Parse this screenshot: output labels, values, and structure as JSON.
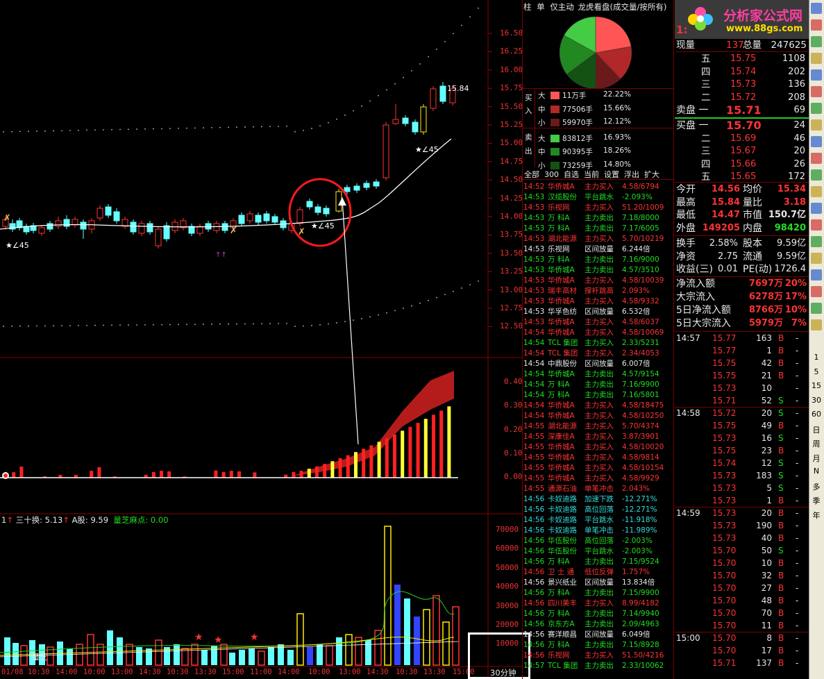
{
  "main_chart": {
    "price_axis": [
      "16.50",
      "16.25",
      "16.00",
      "15.75",
      "15.50",
      "15.25",
      "15.00",
      "14.75",
      "14.50",
      "14.25",
      "14.00",
      "13.75",
      "13.50",
      "13.25",
      "13.00",
      "12.75",
      "12.50"
    ],
    "annotations": [
      "15.84",
      "★∠45",
      "★∠45",
      "★∠45"
    ]
  },
  "indicator_axis": [
    "0.40",
    "0.30",
    "0.20",
    "0.10",
    "0.00"
  ],
  "volume_panel": {
    "header_prefix": "1",
    "label1": "三十换: 5.13",
    "label2": "A股: 9.59",
    "label3": "量芝麻点: 0.00",
    "axis": [
      "70000",
      "60000",
      "50000",
      "40000",
      "30000",
      "20000",
      "10000"
    ],
    "bottom_text": "量芝"
  },
  "time_axis": [
    "01/08 10:30",
    "14:00",
    "10:00",
    "13:00",
    "14:30",
    "10:30",
    "13:30",
    "15:00",
    "11:00",
    "14:00",
    "10:00",
    "13:00",
    "14:30",
    "10:30",
    "13:30",
    "15:00"
  ],
  "period_label": "30分钟",
  "middle_panel": {
    "tabs": [
      "柱",
      "单",
      "仅主动",
      "龙虎看盘(成交量/按所有)"
    ],
    "flow": {
      "buy_label": [
        "买",
        "入"
      ],
      "sell_label": [
        "卖",
        "出"
      ],
      "rows": [
        {
          "size": "大",
          "amount": "11万手",
          "pct": "22.22%",
          "color": "#ff5555"
        },
        {
          "size": "中",
          "amount": "77506手",
          "pct": "15.66%",
          "color": "#b02828"
        },
        {
          "size": "小",
          "amount": "59970手",
          "pct": "12.12%",
          "color": "#6a1a1a"
        },
        {
          "size": "大",
          "amount": "83812手",
          "pct": "16.93%",
          "color": "#44cc44"
        },
        {
          "size": "中",
          "amount": "90395手",
          "pct": "18.26%",
          "color": "#228822"
        },
        {
          "size": "小",
          "amount": "73259手",
          "pct": "14.80%",
          "color": "#145214"
        }
      ]
    },
    "filter_bar": "全部  300  自选  当前  设置  浮出  扩大",
    "list": [
      [
        "14:52",
        "华侨城A",
        "主力买入",
        "4.58/6794",
        "r"
      ],
      [
        "14:53",
        "汉缆股份",
        "平台跳水",
        "-2.093%",
        "g"
      ],
      [
        "14:53",
        "乐视网",
        "主力买入",
        "51.20/1009",
        "r"
      ],
      [
        "14:53",
        "万  科A",
        "主力卖出",
        "7.18/8000",
        "g"
      ],
      [
        "14:53",
        "万  科A",
        "主力卖出",
        "7.17/6005",
        "g"
      ],
      [
        "14:53",
        "湖北能源",
        "主力买入",
        "5.70/10219",
        "r"
      ],
      [
        "14:53",
        "乐视网",
        "区间放量",
        "6.244倍",
        "w"
      ],
      [
        "14:53",
        "万  科A",
        "主力卖出",
        "7.16/9000",
        "g"
      ],
      [
        "14:53",
        "华侨城A",
        "主力卖出",
        "4.57/3510",
        "g"
      ],
      [
        "14:53",
        "华侨城A",
        "主力买入",
        "4.58/10039",
        "r"
      ],
      [
        "14:53",
        "瑞丰高材",
        "撑杆跳高",
        "2.093%",
        "r"
      ],
      [
        "14:53",
        "华侨城A",
        "主力买入",
        "4.58/9332",
        "r"
      ],
      [
        "14:53",
        "华孚色纺",
        "区间放量",
        "6.532倍",
        "w"
      ],
      [
        "14:53",
        "华侨城A",
        "主力买入",
        "4.58/6037",
        "r"
      ],
      [
        "14:54",
        "华侨城A",
        "主力买入",
        "4.58/10069",
        "r"
      ],
      [
        "14:54",
        "TCL 集团",
        "主力买入",
        "2.33/5231",
        "g"
      ],
      [
        "14:54",
        "TCL 集团",
        "主力买入",
        "2.34/4053",
        "r"
      ],
      [
        "14:54",
        "中鼎股份",
        "区间放量",
        "6.007倍",
        "w"
      ],
      [
        "14:54",
        "华侨城A",
        "主力卖出",
        "4.57/9154",
        "g"
      ],
      [
        "14:54",
        "万  科A",
        "主力卖出",
        "7.16/9900",
        "g"
      ],
      [
        "14:54",
        "万  科A",
        "主力卖出",
        "7.16/5801",
        "g"
      ],
      [
        "14:54",
        "华侨城A",
        "主力买入",
        "4.58/18475",
        "r"
      ],
      [
        "14:54",
        "华侨城A",
        "主力买入",
        "4.58/10250",
        "r"
      ],
      [
        "14:55",
        "湖北能源",
        "主力买入",
        "5.70/4374",
        "r"
      ],
      [
        "14:55",
        "深康佳A",
        "主力买入",
        "3.87/3901",
        "r"
      ],
      [
        "14:55",
        "华侨城A",
        "主力买入",
        "4.58/10020",
        "r"
      ],
      [
        "14:55",
        "华侨城A",
        "主力买入",
        "4.58/9814",
        "r"
      ],
      [
        "14:55",
        "华侨城A",
        "主力买入",
        "4.58/10154",
        "r"
      ],
      [
        "14:55",
        "华侨城A",
        "主力买入",
        "4.58/9929",
        "r"
      ],
      [
        "14:55",
        "通源石油",
        "单笔冲击",
        "2.043%",
        "r"
      ],
      [
        "14:56",
        "卡奴迪路",
        "加速下跌",
        "-12.271%",
        "c"
      ],
      [
        "14:56",
        "卡奴迪路",
        "高位回落",
        "-12.271%",
        "c"
      ],
      [
        "14:56",
        "卡奴迪路",
        "平台跳水",
        "-11.918%",
        "c"
      ],
      [
        "14:56",
        "卡奴迪路",
        "单笔冲击",
        "-11.989%",
        "c"
      ],
      [
        "14:56",
        "华伍股份",
        "高位回落",
        "-2.003%",
        "g"
      ],
      [
        "14:56",
        "华伍股份",
        "平台跳水",
        "-2.003%",
        "g"
      ],
      [
        "14:56",
        "万  科A",
        "主力卖出",
        "7.15/9524",
        "g"
      ],
      [
        "14:56",
        "卫 士 通",
        "低位反弹",
        "1.757%",
        "r"
      ],
      [
        "14:56",
        "景兴纸业",
        "区间放量",
        "13.834倍",
        "w"
      ],
      [
        "14:56",
        "万  科A",
        "主力卖出",
        "7.15/9900",
        "g"
      ],
      [
        "14:56",
        "四川美丰",
        "主力买入",
        "8.99/4182",
        "r"
      ],
      [
        "14:56",
        "万  科A",
        "主力卖出",
        "7.14/9940",
        "g"
      ],
      [
        "14:56",
        "京东方A",
        "主力卖出",
        "2.09/4963",
        "g"
      ],
      [
        "14:56",
        "赛洋顺昌",
        "区间放量",
        "6.049倍",
        "w"
      ],
      [
        "14:56",
        "万  科A",
        "主力卖出",
        "7.15/8928",
        "g"
      ],
      [
        "14:56",
        "乐视网",
        "主力买入",
        "51.50/4216",
        "r"
      ],
      [
        "14:57",
        "TCL 集团",
        "主力卖出",
        "2.33/10062",
        "g"
      ]
    ]
  },
  "right_panel": {
    "logo_text": "分析家公式网",
    "logo_url": "www.88gs.com",
    "code_partial": "1:",
    "now_label": "现量",
    "now_val": "137",
    "total_label": "总量",
    "total_val": "247625",
    "sell_quotes": [
      {
        "lvl": "五",
        "price": "15.75",
        "vol": "1108"
      },
      {
        "lvl": "四",
        "price": "15.74",
        "vol": "202"
      },
      {
        "lvl": "三",
        "price": "15.73",
        "vol": "136"
      },
      {
        "lvl": "二",
        "price": "15.72",
        "vol": "208"
      },
      {
        "lvl": "卖盘 一",
        "price": "15.71",
        "vol": "69"
      }
    ],
    "buy_quotes": [
      {
        "lvl": "买盘 一",
        "price": "15.70",
        "vol": "24"
      },
      {
        "lvl": "二",
        "price": "15.69",
        "vol": "46"
      },
      {
        "lvl": "三",
        "price": "15.67",
        "vol": "20"
      },
      {
        "lvl": "四",
        "price": "15.66",
        "vol": "26"
      },
      {
        "lvl": "五",
        "price": "15.65",
        "vol": "172"
      }
    ],
    "stats": [
      [
        "今开",
        "14.56",
        "均价",
        "15.34"
      ],
      [
        "最高",
        "15.84",
        "量比",
        "3.18"
      ],
      [
        "最低",
        "14.47",
        "市值",
        "150.7亿"
      ],
      [
        "外盘",
        "149205",
        "内盘",
        "98420"
      ]
    ],
    "stats2": [
      [
        "换手",
        "2.58%",
        "股本",
        "9.59亿"
      ],
      [
        "净资",
        "2.75",
        "流通",
        "9.59亿"
      ],
      [
        "收益(三)",
        "0.01",
        "PE(动)",
        "1726.4"
      ]
    ],
    "flows": [
      [
        "净流入额",
        "7697万",
        "20%"
      ],
      [
        "大宗流入",
        "6278万",
        "17%"
      ],
      [
        "5日净流入额",
        "8766万",
        "10%"
      ],
      [
        "5日大宗流入",
        "5979万",
        "7%"
      ]
    ],
    "ticks": [
      {
        "time": "14:57",
        "rows": [
          [
            "15.77",
            "163",
            "B"
          ],
          [
            "15.77",
            "1",
            "B"
          ],
          [
            "15.75",
            "42",
            "B"
          ],
          [
            "15.75",
            "21",
            "B"
          ],
          [
            "15.73",
            "10",
            ""
          ],
          [
            "15.71",
            "52",
            "S"
          ]
        ]
      },
      {
        "time": "14:58",
        "rows": [
          [
            "15.72",
            "20",
            "S"
          ],
          [
            "15.75",
            "49",
            "B"
          ],
          [
            "15.73",
            "16",
            "S"
          ],
          [
            "15.75",
            "23",
            "B"
          ],
          [
            "15.74",
            "12",
            "S"
          ],
          [
            "15.73",
            "183",
            "S"
          ],
          [
            "15.73",
            "5",
            "S"
          ],
          [
            "15.73",
            "1",
            "B"
          ]
        ]
      },
      {
        "time": "14:59",
        "rows": [
          [
            "15.73",
            "20",
            "B"
          ],
          [
            "15.73",
            "190",
            "B"
          ],
          [
            "15.73",
            "40",
            "B"
          ],
          [
            "15.70",
            "50",
            "S"
          ],
          [
            "15.70",
            "10",
            "B"
          ],
          [
            "15.70",
            "32",
            "B"
          ],
          [
            "15.70",
            "27",
            "B"
          ],
          [
            "15.70",
            "48",
            "B"
          ],
          [
            "15.70",
            "70",
            "B"
          ],
          [
            "15.70",
            "11",
            "B"
          ]
        ]
      },
      {
        "time": "15:00",
        "rows": [
          [
            "15.70",
            "8",
            "B"
          ],
          [
            "15.70",
            "17",
            "B"
          ],
          [
            "15.71",
            "137",
            "B"
          ]
        ]
      }
    ]
  },
  "side_toolbar": [
    "1",
    "5",
    "15",
    "30",
    "60",
    "日",
    "周",
    "月",
    "N",
    "多",
    "季",
    "年"
  ]
}
